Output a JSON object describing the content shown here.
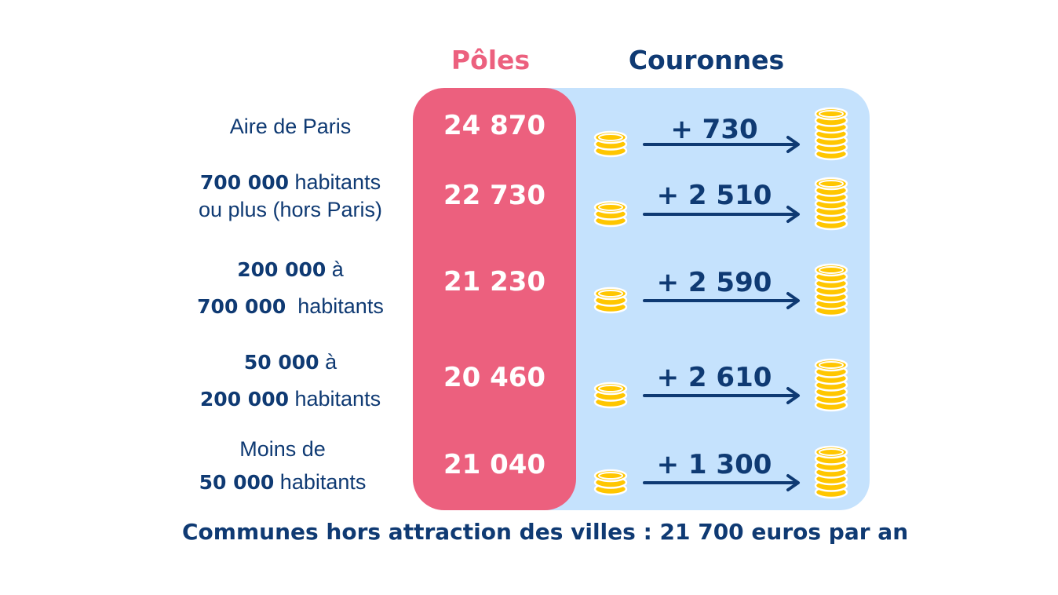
{
  "chart_data": {
    "type": "table",
    "columns": {
      "poles": "Pôles",
      "couronnes": "Couronnes"
    },
    "rows": [
      {
        "label_bold": "",
        "label_text": "Aire de Paris",
        "label_line2_bold": "",
        "label_line2_text": "",
        "pole": "24 870",
        "gain": "+ 730",
        "pole_value": 24870,
        "gain_value": 730
      },
      {
        "label_bold": "700 000",
        "label_text": " habitants",
        "label_line2_bold": "",
        "label_line2_text": "ou plus (hors Paris)",
        "pole": "22 730",
        "gain": "+ 2 510",
        "pole_value": 22730,
        "gain_value": 2510
      },
      {
        "label_bold": "200 000",
        "label_text": " à",
        "label_line2_bold": "700 000",
        "label_line2_text": "  habitants",
        "pole": "21 230",
        "gain": "+ 2 590",
        "pole_value": 21230,
        "gain_value": 2590
      },
      {
        "label_bold": "50 000",
        "label_text": " à",
        "label_line2_bold": "200 000",
        "label_line2_text": " habitants",
        "pole": "20 460",
        "gain": "+ 2 610",
        "pole_value": 20460,
        "gain_value": 2610
      },
      {
        "label_bold": "",
        "label_text": "Moins de",
        "label_line2_bold": "50 000",
        "label_line2_text": " habitants",
        "pole": "21 040",
        "gain": "+ 1 300",
        "pole_value": 21040,
        "gain_value": 1300
      }
    ],
    "footer": "Communes hors attraction des villes : 21 700 euros par an"
  },
  "colors": {
    "pole": "#ec607e",
    "crown": "#c5e2fd",
    "text": "#0f3a73",
    "coin": "#ffc600"
  },
  "icons": {
    "small": "coin-stack-small-icon",
    "large": "coin-stack-large-icon",
    "arrow": "arrow-right-icon"
  }
}
